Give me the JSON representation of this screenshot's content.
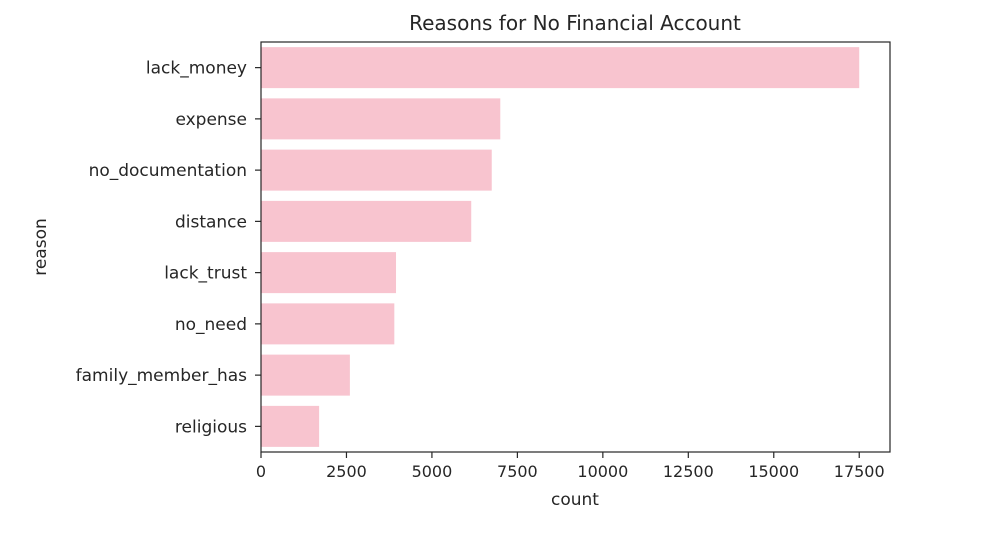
{
  "chart_data": {
    "type": "bar",
    "orientation": "horizontal",
    "title": "Reasons for No Financial Account",
    "xlabel": "count",
    "ylabel": "reason",
    "categories": [
      "lack_money",
      "expense",
      "no_documentation",
      "distance",
      "lack_trust",
      "no_need",
      "family_member_has",
      "religious"
    ],
    "values": [
      17500,
      7000,
      6750,
      6150,
      3950,
      3900,
      2600,
      1700
    ],
    "xlim": [
      0,
      18400
    ],
    "xticks": [
      0,
      2500,
      5000,
      7500,
      10000,
      12500,
      15000,
      17500
    ],
    "xtick_labels": [
      "0",
      "2500",
      "5000",
      "7500",
      "10000",
      "12500",
      "15000",
      "17500"
    ],
    "grid": false,
    "legend": "none",
    "bar_color": "#f8c4cf",
    "axis_color": "#262626"
  }
}
